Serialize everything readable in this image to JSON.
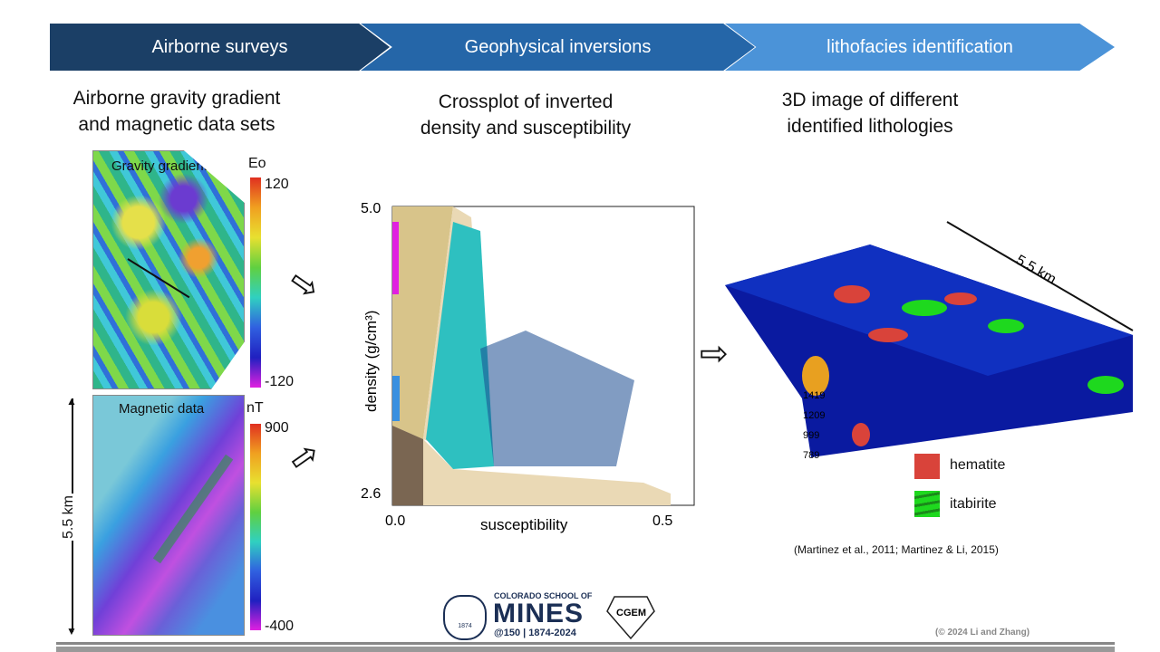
{
  "steps": [
    "Airborne surveys",
    "Geophysical inversions",
    "lithofacies identification"
  ],
  "colors": {
    "step1": "#1b3f66",
    "step2": "#2566a8",
    "step3": "#4b93d8"
  },
  "left": {
    "title_line1": "Airborne gravity gradient",
    "title_line2": "and magnetic data sets",
    "gravity": {
      "label": "Gravity gradient",
      "unit": "Eo",
      "max": "120",
      "min": "-120"
    },
    "magnetic": {
      "label": "Magnetic data",
      "unit": "nT",
      "max": "900",
      "min": "-400"
    },
    "scale": "5.5 km"
  },
  "middle": {
    "title_line1": "Crossplot of inverted",
    "title_line2": "density and susceptibility",
    "chart_data": {
      "type": "scatter",
      "xlabel": "susceptibility",
      "ylabel": "density (g/cm³)",
      "xlim": [
        0,
        0.6
      ],
      "ylim": [
        2.6,
        5.0
      ],
      "xticks": [
        "0.0",
        "0.5"
      ],
      "yticks": [
        "2.6",
        "5.0"
      ]
    }
  },
  "right": {
    "title_line1": "3D image of different",
    "title_line2": "identified lithologies",
    "scale": "5.5 km",
    "depths": [
      "1419",
      "1209",
      "999",
      "789"
    ],
    "legend": [
      {
        "label": "hematite",
        "color": "#d9433a"
      },
      {
        "label": "itabirite",
        "color": "#1ed81e"
      }
    ],
    "citation": "(Martinez et al., 2011; Martinez & Li, 2015)"
  },
  "footer": {
    "mines_top": "COLORADO SCHOOL OF",
    "mines_name": "MINES",
    "mines_sub": "@150 | 1874-2024",
    "seal_year": "1874",
    "cgem": "CGEM",
    "copyright": "(© 2024 Li and Zhang)"
  }
}
